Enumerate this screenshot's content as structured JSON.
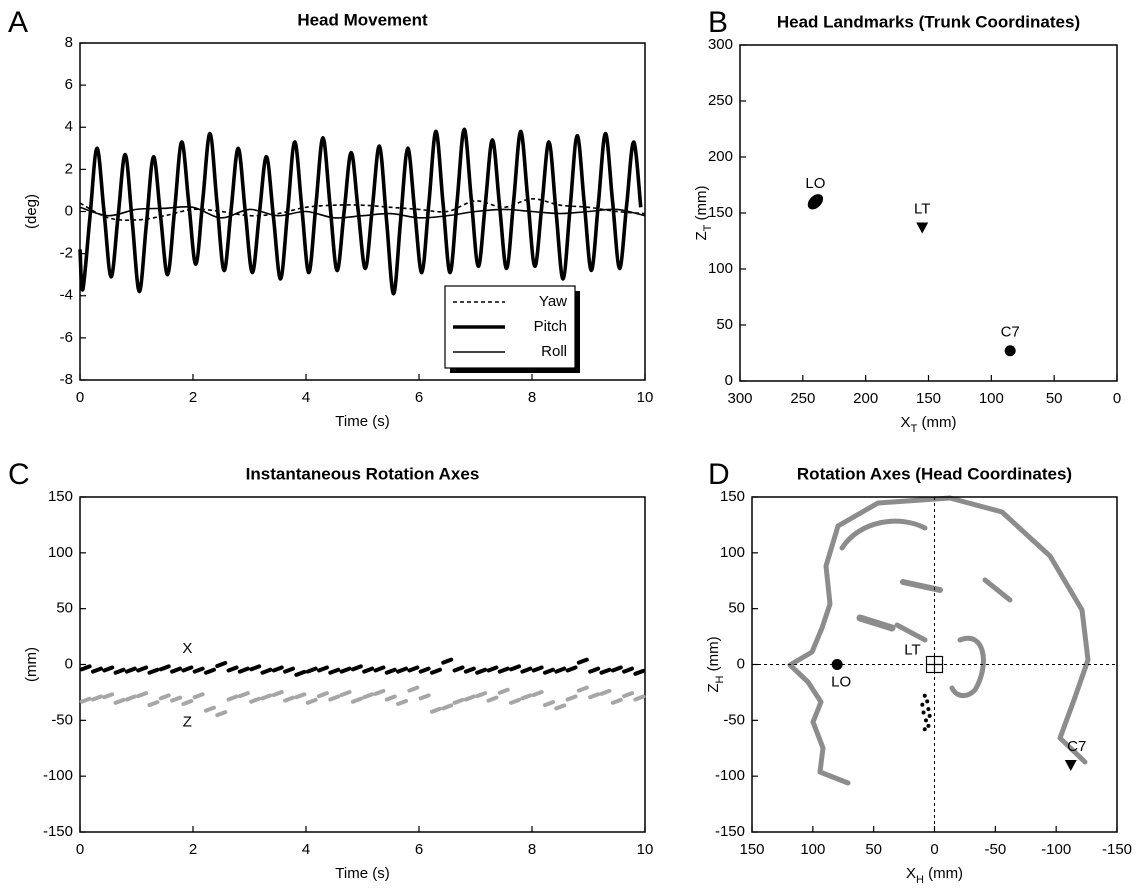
{
  "chart_data": [
    {
      "type": "line",
      "panel": "A",
      "title": "Head Movement",
      "xlabel": [
        "Time (s)"
      ],
      "ylabel": [
        "(deg)"
      ],
      "xlim": [
        0,
        10
      ],
      "ylim": [
        -8,
        8
      ],
      "xticks": [
        0,
        2,
        4,
        6,
        8,
        10
      ],
      "yticks": [
        -8,
        -6,
        -4,
        -2,
        0,
        2,
        4,
        6,
        8
      ],
      "legend": "lower right",
      "series": [
        {
          "name": "Yaw",
          "color": "#000000",
          "style": "dashed",
          "width": 1.6,
          "x": [
            0,
            0.5,
            1,
            1.5,
            2,
            2.5,
            3,
            3.5,
            4,
            4.5,
            5,
            5.5,
            6,
            6.5,
            7,
            7.5,
            8,
            8.5,
            9,
            9.5,
            10
          ],
          "values": [
            0.4,
            -0.3,
            -0.4,
            -0.2,
            0.1,
            0.0,
            -0.2,
            -0.1,
            0.2,
            0.3,
            0.3,
            0.2,
            0.1,
            0.0,
            0.5,
            0.2,
            0.6,
            0.3,
            0.2,
            0.0,
            -0.1
          ]
        },
        {
          "name": "Pitch",
          "color": "#000000",
          "style": "solid",
          "width": 3.6,
          "x": [
            0,
            0.05,
            0.175,
            0.3,
            0.425,
            0.55,
            0.675,
            0.8,
            0.925,
            1.05,
            1.175,
            1.3,
            1.425,
            1.55,
            1.675,
            1.8,
            1.925,
            2.05,
            2.175,
            2.3,
            2.425,
            2.55,
            2.675,
            2.8,
            2.925,
            3.05,
            3.175,
            3.3,
            3.425,
            3.55,
            3.675,
            3.8,
            3.925,
            4.05,
            4.175,
            4.3,
            4.425,
            4.55,
            4.675,
            4.8,
            4.925,
            5.05,
            5.175,
            5.3,
            5.425,
            5.55,
            5.675,
            5.8,
            5.925,
            6.05,
            6.175,
            6.3,
            6.425,
            6.55,
            6.675,
            6.8,
            6.925,
            7.05,
            7.175,
            7.3,
            7.425,
            7.55,
            7.675,
            7.8,
            7.925,
            8.05,
            8.175,
            8.3,
            8.425,
            8.55,
            8.675,
            8.8,
            8.925,
            9.05,
            9.175,
            9.3,
            9.425,
            9.55,
            9.675,
            9.8,
            9.925
          ],
          "values": [
            -1.8,
            -3.7,
            -0.3,
            3.0,
            0,
            -3.1,
            -0.2,
            2.7,
            -0.5,
            -3.8,
            -0.6,
            2.6,
            -0.2,
            -3.0,
            0.1,
            3.3,
            0.4,
            -2.5,
            0.6,
            3.7,
            0.4,
            -2.8,
            0.1,
            3.0,
            0,
            -2.9,
            -0.1,
            2.6,
            -0.3,
            -3.2,
            0,
            3.3,
            0.2,
            -2.9,
            0.3,
            3.5,
            0.3,
            -2.8,
            0,
            2.8,
            0,
            -2.7,
            0.2,
            3.1,
            -0.4,
            -3.9,
            -0.4,
            3.0,
            0,
            -2.9,
            0.4,
            3.8,
            0.4,
            -2.9,
            0.5,
            3.9,
            0.6,
            -2.6,
            0.4,
            3.4,
            0.3,
            -2.7,
            0.5,
            3.8,
            0.6,
            -2.6,
            0.3,
            3.3,
            0,
            -3.2,
            0.2,
            3.6,
            0.4,
            -2.8,
            0.4,
            3.7,
            0.5,
            -2.7,
            0.3,
            3.3,
            0.2
          ]
        },
        {
          "name": "Roll",
          "color": "#000000",
          "style": "solid",
          "width": 1.6,
          "x": [
            0,
            0.5,
            1,
            1.5,
            2,
            2.5,
            3,
            3.5,
            4,
            4.5,
            5,
            5.5,
            6,
            6.5,
            7,
            7.5,
            8,
            8.5,
            9,
            9.5,
            10
          ],
          "values": [
            0.2,
            -0.2,
            0.1,
            0.15,
            0.2,
            -0.3,
            0.1,
            -0.2,
            0.0,
            -0.3,
            -0.2,
            -0.1,
            -0.3,
            -0.2,
            0.0,
            0.1,
            0.0,
            -0.1,
            0.0,
            0.1,
            -0.2
          ]
        }
      ]
    },
    {
      "type": "scatter",
      "panel": "B",
      "title": "Head Landmarks (Trunk Coordinates)",
      "xlabel": [
        "X",
        "T",
        " (mm)"
      ],
      "ylabel": [
        "Z",
        "T",
        " (mm)"
      ],
      "xlim": [
        300,
        0
      ],
      "ylim": [
        0,
        300
      ],
      "xticks": [
        300,
        250,
        200,
        150,
        100,
        50,
        0
      ],
      "yticks": [
        0,
        50,
        100,
        150,
        200,
        250,
        300
      ],
      "point_labels": true,
      "series": [
        {
          "name": "LO",
          "color": "#000000",
          "marker": "blob",
          "x": [
            240
          ],
          "values": [
            160
          ]
        },
        {
          "name": "LT",
          "color": "#000000",
          "marker": "triangle-down",
          "x": [
            155
          ],
          "values": [
            137
          ]
        },
        {
          "name": "C7",
          "color": "#000000",
          "marker": "circle",
          "x": [
            85
          ],
          "values": [
            27
          ]
        }
      ]
    },
    {
      "type": "scatter",
      "panel": "C",
      "title": "Instantaneous Rotation Axes",
      "xlabel": [
        "Time (s)"
      ],
      "ylabel": [
        "(mm)"
      ],
      "xlim": [
        0,
        10
      ],
      "ylim": [
        -150,
        150
      ],
      "xticks": [
        0,
        2,
        4,
        6,
        8,
        10
      ],
      "yticks": [
        -150,
        -100,
        -50,
        0,
        50,
        100,
        150
      ],
      "series_labels": true,
      "series": [
        {
          "name": "X",
          "color": "#000000",
          "marker": "dash",
          "x": [
            0.1,
            0.3,
            0.5,
            0.7,
            0.9,
            1.1,
            1.3,
            1.5,
            1.7,
            1.9,
            2.1,
            2.3,
            2.5,
            2.7,
            2.9,
            3.1,
            3.3,
            3.5,
            3.7,
            3.9,
            4.1,
            4.3,
            4.5,
            4.7,
            4.9,
            5.1,
            5.3,
            5.5,
            5.7,
            5.9,
            6.1,
            6.3,
            6.5,
            6.7,
            6.9,
            7.1,
            7.3,
            7.5,
            7.7,
            7.9,
            8.1,
            8.3,
            8.5,
            8.7,
            8.9,
            9.1,
            9.3,
            9.5,
            9.7,
            9.9
          ],
          "values": [
            -3,
            -5,
            -4,
            -6,
            -5,
            -4,
            -6,
            -3,
            -5,
            -4,
            -5,
            -6,
            0,
            -4,
            -5,
            -3,
            -6,
            -4,
            -5,
            -8,
            -5,
            -4,
            -6,
            -5,
            -3,
            -5,
            -4,
            -6,
            -5,
            -4,
            -5,
            -6,
            3,
            -4,
            -5,
            -6,
            -4,
            -5,
            -3,
            -5,
            -4,
            -6,
            -5,
            -4,
            3,
            -5,
            -6,
            -4,
            -5,
            -7
          ]
        },
        {
          "name": "Z",
          "color": "#a6a6a6",
          "marker": "dash",
          "x": [
            0.1,
            0.3,
            0.5,
            0.7,
            0.9,
            1.1,
            1.3,
            1.5,
            1.7,
            1.9,
            2.1,
            2.3,
            2.5,
            2.7,
            2.9,
            3.1,
            3.3,
            3.5,
            3.7,
            3.9,
            4.1,
            4.3,
            4.5,
            4.7,
            4.9,
            5.1,
            5.3,
            5.5,
            5.7,
            5.9,
            6.1,
            6.3,
            6.5,
            6.7,
            6.9,
            7.1,
            7.3,
            7.5,
            7.7,
            7.9,
            8.1,
            8.3,
            8.5,
            8.7,
            8.9,
            9.1,
            9.3,
            9.5,
            9.7,
            9.9
          ],
          "values": [
            -32,
            -30,
            -28,
            -33,
            -30,
            -27,
            -35,
            -29,
            -31,
            -34,
            -28,
            -40,
            -44,
            -30,
            -27,
            -32,
            -29,
            -26,
            -31,
            -28,
            -33,
            -27,
            -30,
            -26,
            -32,
            -28,
            -25,
            -30,
            -34,
            -22,
            -29,
            -41,
            -38,
            -33,
            -30,
            -27,
            -31,
            -24,
            -33,
            -29,
            -26,
            -35,
            -38,
            -30,
            -22,
            -28,
            -25,
            -33,
            -27,
            -30
          ]
        }
      ]
    },
    {
      "type": "scatter",
      "panel": "D",
      "title": "Rotation Axes (Head Coordinates)",
      "xlabel": [
        "X",
        "H",
        " (mm)"
      ],
      "ylabel": [
        "Z",
        "H",
        " (mm)"
      ],
      "xlim": [
        150,
        -150
      ],
      "ylim": [
        -150,
        150
      ],
      "xticks": [
        150,
        100,
        50,
        0,
        -50,
        -100,
        -150
      ],
      "yticks": [
        -150,
        -100,
        -50,
        0,
        50,
        100,
        150
      ],
      "point_labels": true,
      "crosshair": true,
      "series": [
        {
          "name": "LO",
          "color": "#000000",
          "marker": "circle",
          "x": [
            80
          ],
          "values": [
            0
          ]
        },
        {
          "name": "LT",
          "color": "#000000",
          "marker": "square-cross",
          "x": [
            0
          ],
          "values": [
            0
          ]
        },
        {
          "name": "C7",
          "color": "#000000",
          "marker": "triangle-down",
          "x": [
            -112
          ],
          "values": [
            -90
          ]
        },
        {
          "color": "#000000",
          "marker": "dot",
          "x": [
            8,
            6,
            10,
            5,
            9,
            4,
            7,
            5,
            8
          ],
          "values": [
            -28,
            -33,
            -36,
            -40,
            -43,
            -46,
            -50,
            -55,
            -58
          ]
        }
      ]
    }
  ]
}
